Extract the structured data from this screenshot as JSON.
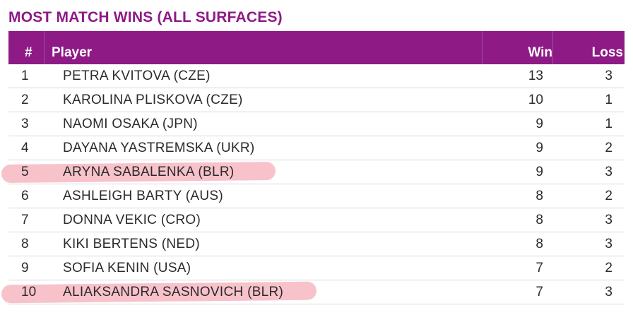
{
  "title": "MOST MATCH WINS (ALL SURFACES)",
  "headers": {
    "rank": "#",
    "player": "Player",
    "win": "Win",
    "loss": "Loss"
  },
  "highlight_color": "#f0788c",
  "header_color": "#8e1a86",
  "rows": [
    {
      "rank": "1",
      "player": "PETRA KVITOVA (CZE)",
      "win": "13",
      "loss": "3",
      "highlighted": false
    },
    {
      "rank": "2",
      "player": "KAROLINA PLISKOVA (CZE)",
      "win": "10",
      "loss": "1",
      "highlighted": false
    },
    {
      "rank": "3",
      "player": "NAOMI OSAKA (JPN)",
      "win": "9",
      "loss": "1",
      "highlighted": false
    },
    {
      "rank": "4",
      "player": "DAYANA YASTREMSKA (UKR)",
      "win": "9",
      "loss": "2",
      "highlighted": false
    },
    {
      "rank": "5",
      "player": "ARYNA SABALENKA (BLR)",
      "win": "9",
      "loss": "3",
      "highlighted": true
    },
    {
      "rank": "6",
      "player": "ASHLEIGH BARTY (AUS)",
      "win": "8",
      "loss": "2",
      "highlighted": false
    },
    {
      "rank": "7",
      "player": "DONNA VEKIC (CRO)",
      "win": "8",
      "loss": "3",
      "highlighted": false
    },
    {
      "rank": "8",
      "player": "KIKI BERTENS (NED)",
      "win": "8",
      "loss": "3",
      "highlighted": false
    },
    {
      "rank": "9",
      "player": "SOFIA KENIN (USA)",
      "win": "7",
      "loss": "2",
      "highlighted": false
    },
    {
      "rank": "10",
      "player": "ALIAKSANDRA SASNOVICH (BLR)",
      "win": "7",
      "loss": "3",
      "highlighted": true
    }
  ]
}
